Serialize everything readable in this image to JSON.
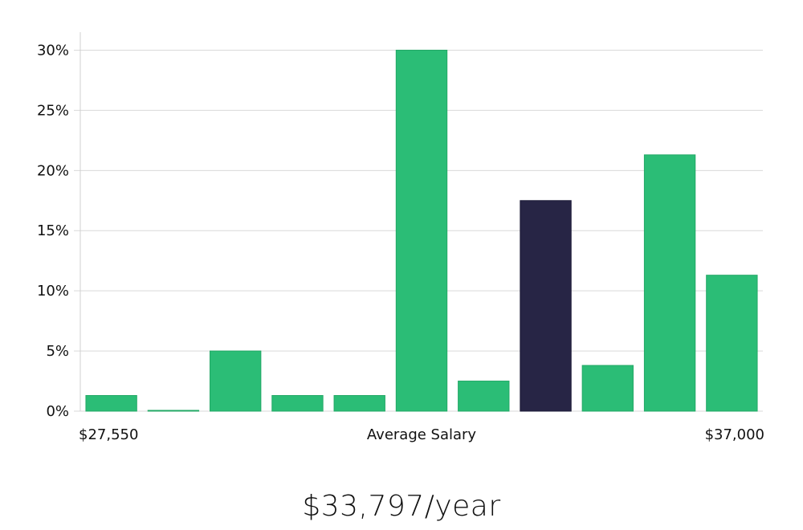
{
  "colors": {
    "bar": "#2bbd76",
    "bar_border": "#23a866",
    "highlight": "#272545",
    "highlight_border": "#1a1836"
  },
  "chart_data": {
    "type": "bar",
    "categories": [
      "1",
      "2",
      "3",
      "4",
      "5",
      "6",
      "7",
      "8",
      "9",
      "10",
      "11"
    ],
    "values": [
      1.3,
      0.05,
      5.0,
      1.3,
      1.3,
      30.0,
      2.5,
      17.5,
      3.8,
      21.3,
      11.3
    ],
    "highlight_index": 7,
    "ylim": [
      0,
      31.5
    ],
    "yticks": [
      0,
      5,
      10,
      15,
      20,
      25,
      30
    ],
    "ytick_labels": [
      "0%",
      "5%",
      "10%",
      "15%",
      "20%",
      "25%",
      "30%"
    ],
    "x_min_label": "$27,550",
    "x_center_label": "Average Salary",
    "x_max_label": "$37,000",
    "grid": true
  },
  "salary_text": "$33,797/year"
}
